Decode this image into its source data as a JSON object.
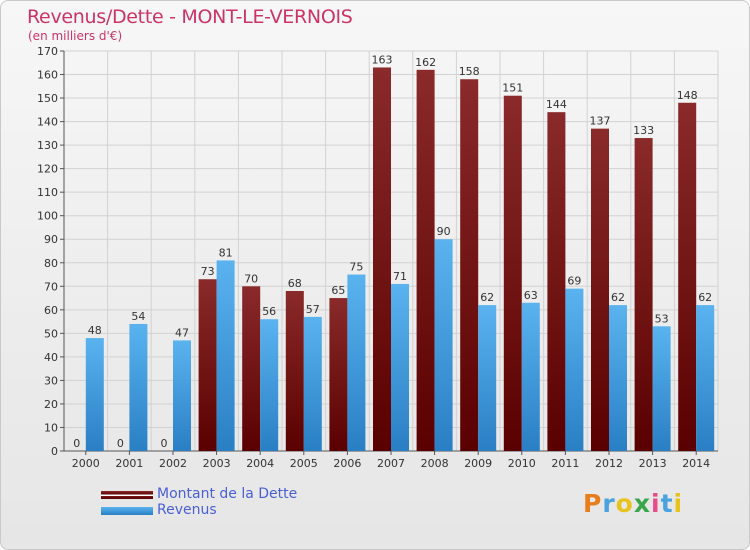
{
  "chart_data": {
    "type": "bar",
    "title": "Revenus/Dette - MONT-LE-VERNOIS",
    "subtitle": "(en milliers d'€)",
    "categories": [
      "2000",
      "2001",
      "2002",
      "2003",
      "2004",
      "2005",
      "2006",
      "2007",
      "2008",
      "2009",
      "2010",
      "2011",
      "2012",
      "2013",
      "2014"
    ],
    "series": [
      {
        "name": "Montant de la Dette",
        "color": "#7a1a1a",
        "values": [
          0,
          0,
          0,
          73,
          70,
          68,
          65,
          163,
          162,
          158,
          151,
          144,
          137,
          133,
          148
        ]
      },
      {
        "name": "Revenus",
        "color": "#3f9fe0",
        "values": [
          48,
          54,
          47,
          81,
          56,
          57,
          75,
          71,
          90,
          62,
          63,
          69,
          62,
          53,
          62
        ]
      }
    ],
    "ylim": [
      0,
      170
    ],
    "yticks": [
      0,
      10,
      20,
      30,
      40,
      50,
      60,
      70,
      80,
      90,
      100,
      110,
      120,
      130,
      140,
      150,
      160,
      170
    ],
    "grid": true,
    "legend_position": "bottom-left"
  },
  "branding": {
    "logo_text": "Proxiti",
    "logo_colors": [
      "#e87d1e",
      "#4aa3df",
      "#e8c31e",
      "#3aa64a",
      "#e84a8a",
      "#4aa3df",
      "#e8c31e"
    ]
  }
}
